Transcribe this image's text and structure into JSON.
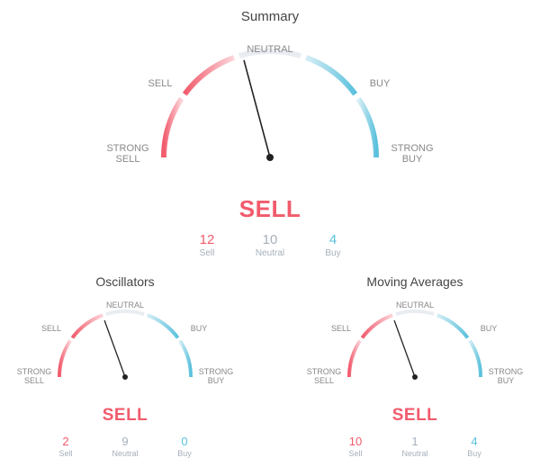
{
  "colors": {
    "sell_strong": "#f15b6c",
    "sell_grad_end": "#fbd6db",
    "neutral": "#e9edf2",
    "buy_grad_start": "#d7eef5",
    "buy_strong": "#5ac1dd",
    "needle": "#222222",
    "label_muted": "#888888",
    "stat_muted": "#a6b0bb",
    "verdict_sell": "#f15b6c"
  },
  "arc": {
    "segments": [
      "STRONG SELL",
      "SELL",
      "NEUTRAL",
      "BUY",
      "STRONG BUY"
    ],
    "stroke_width_lg": 6,
    "stroke_width_sm": 4,
    "gap_deg": 3
  },
  "gauges": [
    {
      "id": "summary",
      "title": "Summary",
      "size": "lg",
      "verdict": "SELL",
      "needle_angle_deg": 255,
      "stats": {
        "sell": 12,
        "neutral": 10,
        "buy": 4
      }
    },
    {
      "id": "oscillators",
      "title": "Oscillators",
      "size": "sm",
      "verdict": "SELL",
      "needle_angle_deg": 250,
      "stats": {
        "sell": 2,
        "neutral": 9,
        "buy": 0
      }
    },
    {
      "id": "moving_averages",
      "title": "Moving Averages",
      "size": "sm",
      "verdict": "SELL",
      "needle_angle_deg": 250,
      "stats": {
        "sell": 10,
        "neutral": 1,
        "buy": 4
      }
    }
  ],
  "stat_labels": {
    "sell": "Sell",
    "neutral": "Neutral",
    "buy": "Buy"
  }
}
